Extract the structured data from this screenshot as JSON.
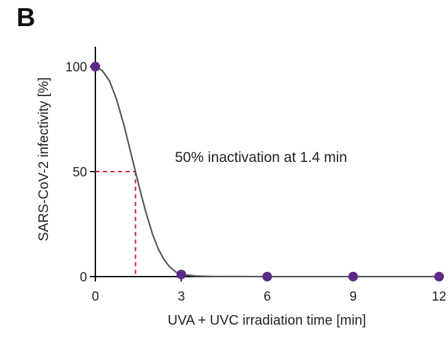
{
  "panel_label": "B",
  "chart_data": {
    "type": "line",
    "title": "",
    "xlabel": "UVA + UVC irradiation time [min]",
    "ylabel": "SARS-CoV-2 infectivity [%]",
    "xlim": [
      0,
      12
    ],
    "ylim": [
      0,
      110
    ],
    "x_ticks": [
      0,
      3,
      6,
      9,
      12
    ],
    "x_tick_labels": [
      "0",
      "3",
      "6",
      "9",
      "12"
    ],
    "y_ticks": [
      0,
      50,
      100
    ],
    "y_tick_labels": [
      "0",
      "50",
      "100"
    ],
    "grid": false,
    "series": [
      {
        "points": {
          "x": [
            0,
            3,
            6,
            9,
            12
          ],
          "y": [
            100,
            1,
            0,
            0,
            0
          ]
        },
        "marker_color": "#5b2a86",
        "fit_curve": {
          "x": [
            0,
            0.25,
            0.5,
            0.75,
            1.0,
            1.2,
            1.4,
            1.6,
            1.8,
            2.0,
            2.2,
            2.4,
            2.6,
            2.8,
            3.0,
            3.5,
            4,
            6,
            9,
            12
          ],
          "y": [
            100,
            98,
            93,
            84,
            72,
            61,
            50,
            39,
            29,
            20,
            13,
            8,
            4.5,
            2.3,
            1,
            0.3,
            0.1,
            0,
            0,
            0
          ],
          "color": "#555555"
        }
      }
    ],
    "annotations": [
      {
        "text": "50% inactivation at 1.4 min",
        "x": 1.4,
        "y": 50,
        "line_color": "#cc2222"
      }
    ]
  }
}
